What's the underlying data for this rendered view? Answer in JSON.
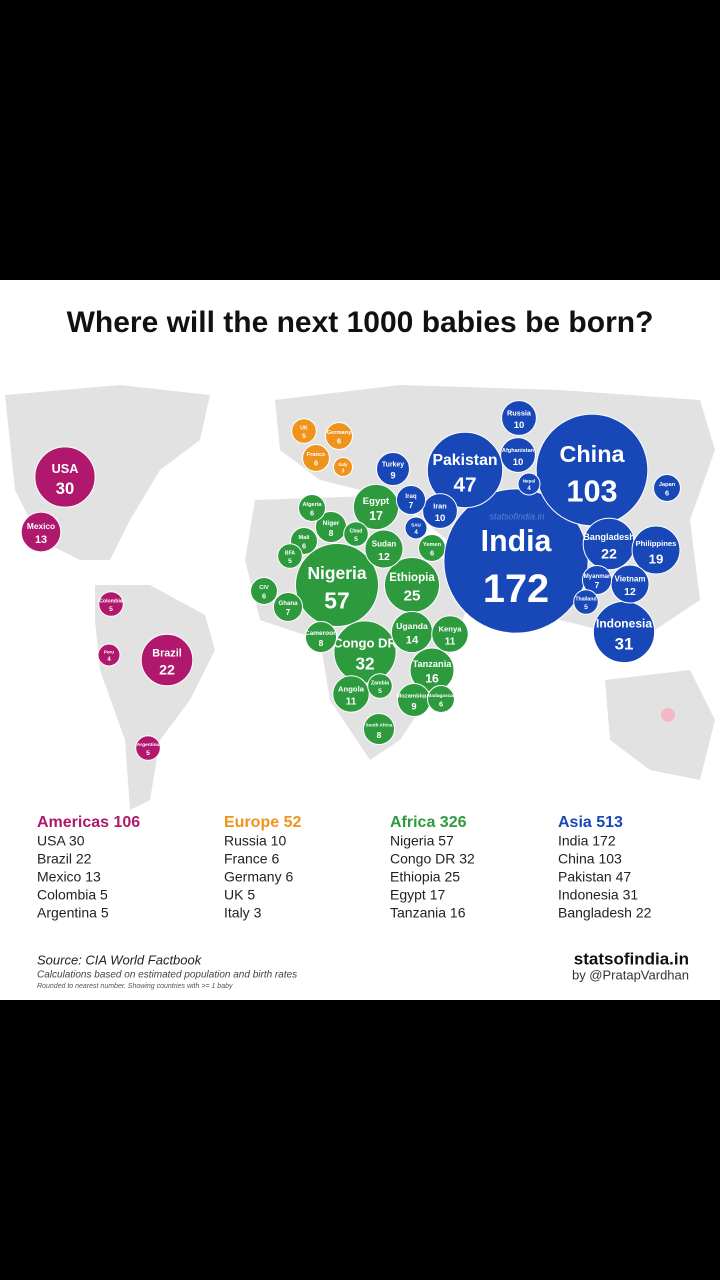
{
  "title": "Where will the next 1000 babies be born?",
  "watermark": "statsofindia.in",
  "regions": [
    {
      "heading": "Americas 106",
      "color": "#b0186e",
      "list": [
        "USA 30",
        "Brazil 22",
        "Mexico 13",
        "Colombia 5",
        "Argentina 5"
      ],
      "bubbles": [
        {
          "name": "USA",
          "value": 30
        },
        {
          "name": "Mexico",
          "value": 13
        },
        {
          "name": "Brazil",
          "value": 22
        },
        {
          "name": "Peru",
          "value": 4
        },
        {
          "name": "Colombia",
          "value": 5
        },
        {
          "name": "Argentina",
          "value": 5
        }
      ]
    },
    {
      "heading": "Europe 52",
      "color": "#f0931c",
      "list": [
        "Russia 10",
        "France 6",
        "Germany 6",
        "UK 5",
        "Italy 3"
      ],
      "bubbles": [
        {
          "name": "UK",
          "value": 5
        },
        {
          "name": "France",
          "value": 6
        },
        {
          "name": "Germany",
          "value": 6
        },
        {
          "name": "Italy",
          "value": 3
        },
        {
          "name": "Russia",
          "value": 10,
          "color": "#1848b8"
        }
      ]
    },
    {
      "heading": "Africa 326",
      "color": "#2e9a3e",
      "list": [
        "Nigeria 57",
        "Congo DR 32",
        "Ethiopia 25",
        "Egypt 17",
        "Tanzania 16"
      ],
      "bubbles": [
        {
          "name": "Nigeria",
          "value": 57
        },
        {
          "name": "Congo DR",
          "value": 32
        },
        {
          "name": "Ethiopia",
          "value": 25
        },
        {
          "name": "Egypt",
          "value": 17
        },
        {
          "name": "Sudan",
          "value": 12
        },
        {
          "name": "Tanzania",
          "value": 16
        },
        {
          "name": "Uganda",
          "value": 14
        },
        {
          "name": "Kenya",
          "value": 11
        },
        {
          "name": "Angola",
          "value": 11
        },
        {
          "name": "Mali",
          "value": 6
        },
        {
          "name": "Niger",
          "value": 8
        },
        {
          "name": "Chad",
          "value": 5
        },
        {
          "name": "Algeria",
          "value": 6
        },
        {
          "name": "BFA",
          "value": 5
        },
        {
          "name": "CIV",
          "value": 6
        },
        {
          "name": "Ghana",
          "value": 7
        },
        {
          "name": "Cameroon",
          "value": 8
        },
        {
          "name": "South Africa",
          "value": 8
        },
        {
          "name": "Zambia",
          "value": 5
        },
        {
          "name": "Mozambique",
          "value": 9
        },
        {
          "name": "Madagascar",
          "value": 6
        },
        {
          "name": "Yemen",
          "value": 6
        }
      ]
    },
    {
      "heading": "Asia 513",
      "color": "#1848b8",
      "list": [
        "India 172",
        "China 103",
        "Pakistan 47",
        "Indonesia 31",
        "Bangladesh 22"
      ],
      "bubbles": [
        {
          "name": "India",
          "value": 172
        },
        {
          "name": "China",
          "value": 103
        },
        {
          "name": "Pakistan",
          "value": 47
        },
        {
          "name": "Indonesia",
          "value": 31
        },
        {
          "name": "Bangladesh",
          "value": 22
        },
        {
          "name": "Philippines",
          "value": 19
        },
        {
          "name": "Vietnam",
          "value": 12
        },
        {
          "name": "Iran",
          "value": 10
        },
        {
          "name": "Iraq",
          "value": 7
        },
        {
          "name": "Afghanistan",
          "value": 10
        },
        {
          "name": "Turkey",
          "value": 9
        },
        {
          "name": "Japan",
          "value": 6
        },
        {
          "name": "Myanmar",
          "value": 7
        },
        {
          "name": "Thailand",
          "value": 5
        },
        {
          "name": "SAU",
          "value": 4
        },
        {
          "name": "Nepal",
          "value": 4
        }
      ]
    }
  ],
  "source": "Source: CIA World Factbook",
  "note1": "Calculations based on estimated population and birth rates",
  "note2": "Rounded to nearest number. Showing countries with >= 1 baby",
  "brand": "statsofindia.in",
  "byline": "by @PratapVardhan"
}
